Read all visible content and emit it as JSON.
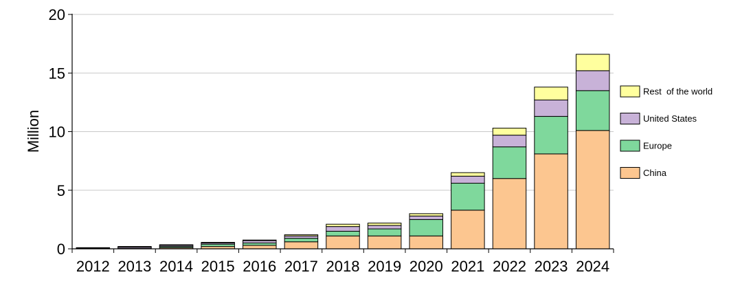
{
  "chart_data": {
    "type": "bar",
    "stacked": true,
    "title": "",
    "xlabel": "",
    "ylabel": "Million",
    "ylim": [
      0,
      20
    ],
    "yticks": [
      0,
      5,
      10,
      15,
      20
    ],
    "grid": "horizontal",
    "legend_position": "right",
    "categories": [
      "2012",
      "2013",
      "2014",
      "2015",
      "2016",
      "2017",
      "2018",
      "2019",
      "2020",
      "2021",
      "2022",
      "2023",
      "2024"
    ],
    "series": [
      {
        "name": "China",
        "color": "#FCC690",
        "values": [
          0.0,
          0.0,
          0.1,
          0.2,
          0.3,
          0.6,
          1.1,
          1.1,
          1.1,
          3.3,
          6.0,
          8.1,
          10.1
        ]
      },
      {
        "name": "Europe",
        "color": "#7FD89C",
        "values": [
          0.05,
          0.05,
          0.1,
          0.2,
          0.2,
          0.3,
          0.4,
          0.6,
          1.4,
          2.3,
          2.7,
          3.2,
          3.4
        ]
      },
      {
        "name": "United States",
        "color": "#C8B2D8",
        "values": [
          0.05,
          0.1,
          0.1,
          0.1,
          0.2,
          0.2,
          0.4,
          0.3,
          0.3,
          0.6,
          1.0,
          1.4,
          1.7
        ]
      },
      {
        "name": "Rest  of the world",
        "color": "#FFFF9E",
        "values": [
          0.0,
          0.05,
          0.05,
          0.05,
          0.05,
          0.1,
          0.2,
          0.2,
          0.2,
          0.3,
          0.6,
          1.1,
          1.4
        ]
      }
    ]
  }
}
